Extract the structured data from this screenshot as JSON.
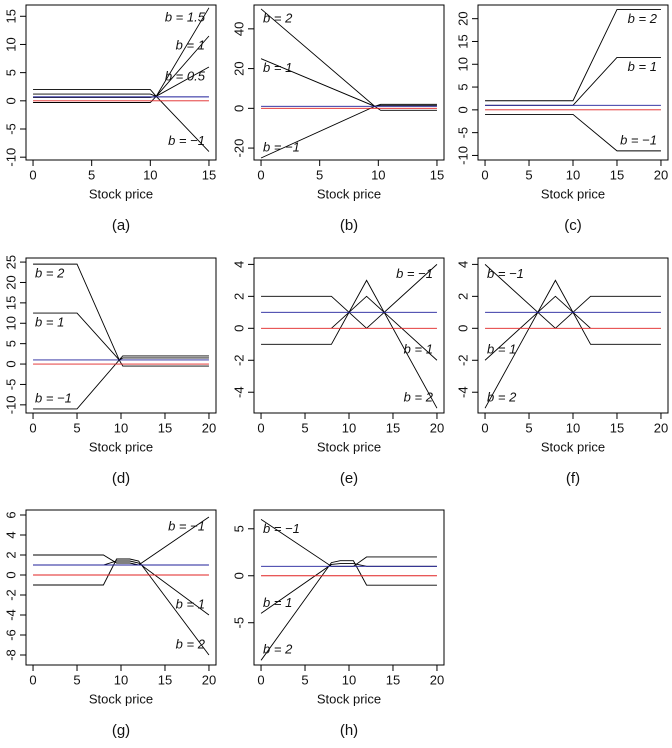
{
  "chart_data": [
    {
      "type": "line",
      "caption": "(a)",
      "x_label": "Stock price",
      "x": [
        0,
        10,
        10.5,
        15
      ],
      "xlim": [
        -0.6,
        15.6
      ],
      "ylim": [
        -10.5,
        17
      ],
      "xticks": [
        0,
        5,
        10,
        15
      ],
      "yticks": [
        -10,
        -5,
        0,
        5,
        10,
        15
      ],
      "series": [
        {
          "label": "b = 1.5",
          "color": "#000000",
          "values": [
            2,
            2,
            0.8,
            16.5
          ]
        },
        {
          "label": "b = 1",
          "color": "#000000",
          "values": [
            1.2,
            1.2,
            0.8,
            11.5
          ]
        },
        {
          "label": "b = 0.5",
          "color": "#000000",
          "values": [
            0.6,
            0.6,
            0.8,
            6
          ]
        },
        {
          "label": "b = −1",
          "color": "#000000",
          "values": [
            -0.3,
            -0.3,
            0.8,
            -9
          ]
        },
        {
          "color": "#1f1f9a",
          "values": [
            0.7,
            0.7,
            0.7,
            0.7
          ]
        },
        {
          "color": "#e02020",
          "values": [
            0,
            0,
            0,
            0
          ]
        }
      ]
    },
    {
      "type": "line",
      "caption": "(b)",
      "x_label": "Stock price",
      "x": [
        0,
        9.7,
        10.2,
        15
      ],
      "xlim": [
        -0.6,
        15.6
      ],
      "ylim": [
        -26,
        52
      ],
      "xticks": [
        0,
        5,
        10,
        15
      ],
      "yticks": [
        -20,
        0,
        20,
        40
      ],
      "series": [
        {
          "label": "b = 2",
          "color": "#000000",
          "values": [
            50,
            1,
            2,
            2
          ]
        },
        {
          "label": "b = 1",
          "color": "#000000",
          "values": [
            25,
            1,
            1.5,
            1.5
          ]
        },
        {
          "label": "b = −1",
          "color": "#000000",
          "values": [
            -25,
            1,
            -1,
            -1
          ]
        },
        {
          "color": "#1f1f9a",
          "values": [
            1,
            1,
            1,
            1
          ]
        },
        {
          "color": "#e02020",
          "values": [
            0,
            0,
            0,
            0
          ]
        }
      ]
    },
    {
      "type": "line",
      "caption": "(c)",
      "x_label": "Stock price",
      "x": [
        0,
        10,
        15,
        20
      ],
      "xlim": [
        -0.8,
        20.8
      ],
      "ylim": [
        -11,
        23
      ],
      "xticks": [
        0,
        5,
        10,
        15,
        20
      ],
      "yticks": [
        -10,
        -5,
        0,
        5,
        10,
        15,
        20
      ],
      "series": [
        {
          "label": "b = 2",
          "color": "#000000",
          "values": [
            2,
            2,
            22,
            22
          ]
        },
        {
          "label": "b = 1",
          "color": "#000000",
          "values": [
            1,
            1,
            11.5,
            11.5
          ]
        },
        {
          "label": "b = −1",
          "color": "#000000",
          "values": [
            -1,
            -1,
            -9,
            -9
          ]
        },
        {
          "color": "#1f1f9a",
          "values": [
            1,
            1,
            1,
            1
          ]
        },
        {
          "color": "#e02020",
          "values": [
            0,
            0,
            0,
            0
          ]
        }
      ]
    },
    {
      "type": "line",
      "caption": "(d)",
      "x_label": "Stock price",
      "x": [
        0,
        5,
        9.8,
        10.2,
        20
      ],
      "xlim": [
        -0.8,
        20.8
      ],
      "ylim": [
        -12,
        26
      ],
      "xticks": [
        0,
        5,
        10,
        15,
        20
      ],
      "yticks": [
        -10,
        -5,
        0,
        5,
        10,
        15,
        20,
        25
      ],
      "series": [
        {
          "label": "b = 2",
          "color": "#000000",
          "values": [
            24.5,
            24.5,
            1,
            2,
            2
          ]
        },
        {
          "label": "b = 1",
          "color": "#000000",
          "values": [
            12.5,
            12.5,
            1,
            1.5,
            1.5
          ]
        },
        {
          "label": "b = −1",
          "color": "#000000",
          "values": [
            -11,
            -11,
            1,
            -0.5,
            -0.5
          ]
        },
        {
          "color": "#1f1f9a",
          "values": [
            1,
            1,
            1,
            1,
            1
          ]
        },
        {
          "color": "#e02020",
          "values": [
            0,
            0,
            0,
            0,
            0
          ]
        }
      ]
    },
    {
      "type": "line",
      "caption": "(e)",
      "x_label": "Stock price",
      "x": [
        0,
        8,
        12,
        20
      ],
      "xlim": [
        -0.8,
        20.8
      ],
      "ylim": [
        -5.3,
        4.4
      ],
      "xticks": [
        0,
        5,
        10,
        15,
        20
      ],
      "yticks": [
        -4,
        -2,
        0,
        2,
        4
      ],
      "series": [
        {
          "label": "b = −1",
          "color": "#000000",
          "values": [
            2,
            2,
            0,
            4
          ]
        },
        {
          "label": "b = 1",
          "color": "#000000",
          "values": [
            null,
            0,
            2,
            -2
          ]
        },
        {
          "label": "b = 2",
          "color": "#000000",
          "values": [
            -1,
            -1,
            3,
            -5
          ]
        },
        {
          "color": "#1f1f9a",
          "values": [
            1,
            1,
            1,
            1
          ]
        },
        {
          "color": "#e02020",
          "values": [
            0,
            0,
            0,
            0
          ]
        }
      ]
    },
    {
      "type": "line",
      "caption": "(f)",
      "x_label": "Stock price",
      "x": [
        0,
        8,
        12,
        20
      ],
      "xlim": [
        -0.8,
        20.8
      ],
      "ylim": [
        -5.3,
        4.4
      ],
      "xticks": [
        0,
        5,
        10,
        15,
        20
      ],
      "yticks": [
        -4,
        -2,
        0,
        2,
        4
      ],
      "series": [
        {
          "label": "b = −1",
          "color": "#000000",
          "values": [
            4,
            0,
            2,
            2
          ]
        },
        {
          "label": "b = 1",
          "color": "#000000",
          "values": [
            -2,
            2,
            0,
            null
          ]
        },
        {
          "label": "b = 2",
          "color": "#000000",
          "values": [
            -5,
            3,
            -1,
            -1
          ]
        },
        {
          "color": "#1f1f9a",
          "values": [
            1,
            1,
            1,
            1
          ]
        },
        {
          "color": "#e02020",
          "values": [
            0,
            0,
            0,
            0
          ]
        }
      ]
    },
    {
      "type": "line",
      "caption": "(g)",
      "x_label": "Stock price",
      "x": [
        0,
        8,
        9.5,
        11,
        12,
        20
      ],
      "xlim": [
        -0.8,
        20.8
      ],
      "ylim": [
        -9,
        6.5
      ],
      "xticks": [
        0,
        5,
        10,
        15,
        20
      ],
      "yticks": [
        -8,
        -6,
        -4,
        -2,
        0,
        2,
        4,
        6
      ],
      "series": [
        {
          "label": "b = −1",
          "color": "#000000",
          "values": [
            2,
            2,
            1.2,
            1.2,
            1,
            5.8
          ]
        },
        {
          "label": "b = 1",
          "color": "#000000",
          "values": [
            1,
            1,
            1.4,
            1.4,
            1.2,
            -4
          ]
        },
        {
          "label": "b = 2",
          "color": "#000000",
          "values": [
            -1,
            -1,
            1.6,
            1.6,
            1.4,
            -8
          ]
        },
        {
          "color": "#1f1f9a",
          "values": [
            1,
            1,
            1,
            1,
            1,
            1
          ]
        },
        {
          "color": "#e02020",
          "values": [
            0,
            0,
            0,
            0,
            0,
            0
          ]
        }
      ]
    },
    {
      "type": "line",
      "caption": "(h)",
      "x_label": "Stock price",
      "x": [
        0,
        8,
        9,
        10.5,
        12,
        20
      ],
      "xlim": [
        -0.8,
        20.8
      ],
      "ylim": [
        -9.5,
        7
      ],
      "xticks": [
        0,
        5,
        10,
        15,
        20
      ],
      "yticks": [
        -5,
        0,
        5
      ],
      "series": [
        {
          "label": "b = −1",
          "color": "#000000",
          "values": [
            6,
            1,
            1,
            1,
            2,
            2
          ]
        },
        {
          "label": "b = 1",
          "color": "#000000",
          "values": [
            -4,
            1.2,
            1.3,
            1.3,
            1,
            1
          ]
        },
        {
          "label": "b = 2",
          "color": "#000000",
          "values": [
            -9,
            1.4,
            1.6,
            1.6,
            -1,
            -1
          ]
        },
        {
          "color": "#1f1f9a",
          "values": [
            1,
            1,
            1,
            1,
            1,
            1
          ]
        },
        {
          "color": "#e02020",
          "values": [
            0,
            0,
            0,
            0,
            0,
            0
          ]
        }
      ]
    }
  ]
}
